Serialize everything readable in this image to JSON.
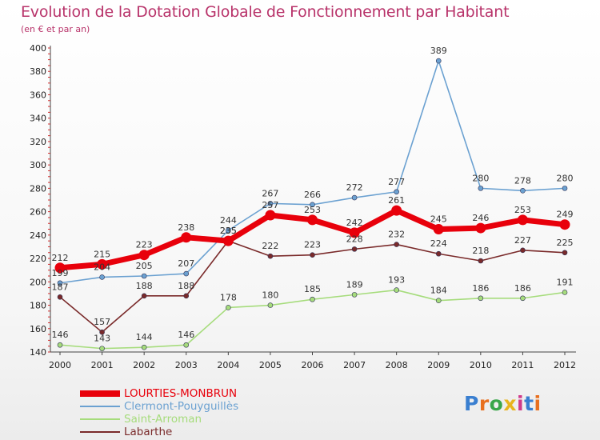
{
  "title": "Evolution de la Dotation Globale de Fonctionnement par Habitant",
  "subtitle": "(en € et par an)",
  "logo_text": "Proxiti",
  "chart_data": {
    "type": "line",
    "x": [
      "2000",
      "2001",
      "2002",
      "2003",
      "2004",
      "2005",
      "2006",
      "2007",
      "2008",
      "2009",
      "2010",
      "2011",
      "2012"
    ],
    "ylim": [
      140,
      400
    ],
    "yticks": [
      140,
      160,
      180,
      200,
      220,
      240,
      260,
      280,
      300,
      320,
      340,
      360,
      380,
      400
    ],
    "grid": false,
    "legend_position": "bottom-left",
    "series": [
      {
        "name": "LOURTIES-MONBRUN",
        "color": "#e8000b",
        "values": [
          212,
          215,
          223,
          238,
          235,
          257,
          253,
          242,
          261,
          245,
          246,
          253,
          249
        ]
      },
      {
        "name": "Clermont-Pouyguillès",
        "color": "#6ba1d1",
        "values": [
          199,
          204,
          205,
          207,
          244,
          267,
          266,
          272,
          277,
          389,
          280,
          278,
          280
        ]
      },
      {
        "name": "Saint-Arroman",
        "color": "#a6dc7c",
        "values": [
          146,
          143,
          144,
          146,
          178,
          180,
          185,
          189,
          193,
          184,
          186,
          186,
          191
        ]
      },
      {
        "name": "Labarthe",
        "color": "#7a2a2a",
        "values": [
          187,
          157,
          188,
          188,
          235,
          222,
          223,
          228,
          232,
          224,
          218,
          227,
          225
        ]
      }
    ]
  }
}
